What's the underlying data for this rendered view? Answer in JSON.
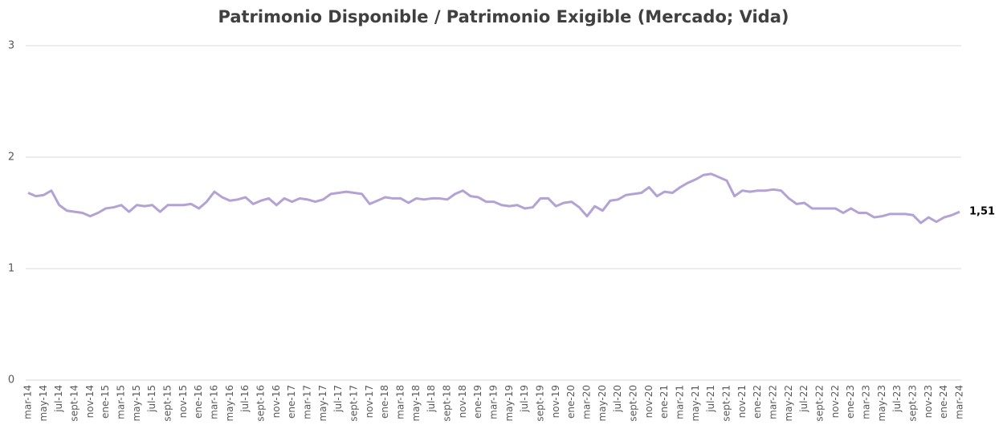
{
  "chart_data": {
    "type": "line",
    "title": "Patrimonio Disponible / Patrimonio Exigible (Mercado; Vida)",
    "categories": [
      "mar-14",
      null,
      "may-14",
      null,
      "jul-14",
      null,
      "sept-14",
      null,
      "nov-14",
      null,
      "ene-15",
      null,
      "mar-15",
      null,
      "may-15",
      null,
      "jul-15",
      null,
      "sept-15",
      null,
      "nov-15",
      null,
      "ene-16",
      null,
      "mar-16",
      null,
      "may-16",
      null,
      "jul-16",
      null,
      "sept-16",
      null,
      "nov-16",
      null,
      "ene-17",
      null,
      "mar-17",
      null,
      "may-17",
      null,
      "jul-17",
      null,
      "sept-17",
      null,
      "nov-17",
      null,
      "ene-18",
      null,
      "mar-18",
      null,
      "may-18",
      null,
      "jul-18",
      null,
      "sept-18",
      null,
      "nov-18",
      null,
      "ene-19",
      null,
      "mar-19",
      null,
      "may-19",
      null,
      "jul-19",
      null,
      "sept-19",
      null,
      "nov-19",
      null,
      "ene-20",
      null,
      "mar-20",
      null,
      "may-20",
      null,
      "jul-20",
      null,
      "sept-20",
      null,
      "nov-20",
      null,
      "ene-21",
      null,
      "mar-21",
      null,
      "may-21",
      null,
      "jul-21",
      null,
      "sept-21",
      null,
      "nov-21",
      null,
      "ene-22",
      null,
      "mar-22",
      null,
      "may-22",
      null,
      "jul-22",
      null,
      "sept-22",
      null,
      "nov-22",
      null,
      "ene-23",
      null,
      "mar-23",
      null,
      "may-23",
      null,
      "jul-23",
      null,
      "sept-23",
      null,
      "nov-23",
      null,
      "ene-24",
      null,
      "mar-24"
    ],
    "series": [
      {
        "color": "#b3a2d3",
        "values": [
          1.68,
          1.65,
          1.66,
          1.7,
          1.57,
          1.52,
          1.51,
          1.5,
          1.47,
          1.5,
          1.54,
          1.55,
          1.57,
          1.51,
          1.57,
          1.56,
          1.57,
          1.51,
          1.57,
          1.57,
          1.57,
          1.58,
          1.54,
          1.6,
          1.69,
          1.64,
          1.61,
          1.62,
          1.64,
          1.58,
          1.61,
          1.63,
          1.57,
          1.63,
          1.6,
          1.63,
          1.62,
          1.6,
          1.62,
          1.67,
          1.68,
          1.69,
          1.68,
          1.67,
          1.58,
          1.61,
          1.64,
          1.63,
          1.63,
          1.59,
          1.63,
          1.62,
          1.63,
          1.63,
          1.62,
          1.67,
          1.7,
          1.65,
          1.64,
          1.6,
          1.6,
          1.57,
          1.56,
          1.57,
          1.54,
          1.55,
          1.63,
          1.63,
          1.56,
          1.59,
          1.6,
          1.55,
          1.47,
          1.56,
          1.52,
          1.61,
          1.62,
          1.66,
          1.67,
          1.68,
          1.73,
          1.65,
          1.69,
          1.68,
          1.73,
          1.77,
          1.8,
          1.84,
          1.85,
          1.82,
          1.79,
          1.65,
          1.7,
          1.69,
          1.7,
          1.7,
          1.71,
          1.7,
          1.63,
          1.58,
          1.59,
          1.54,
          1.54,
          1.54,
          1.54,
          1.5,
          1.54,
          1.5,
          1.5,
          1.46,
          1.47,
          1.49,
          1.49,
          1.49,
          1.48,
          1.41,
          1.46,
          1.42,
          1.46,
          1.48,
          1.51
        ],
        "value_labels": [
          null,
          null,
          null,
          null,
          null,
          null,
          null,
          null,
          null,
          null,
          null,
          null,
          null,
          null,
          null,
          null,
          null,
          null,
          null,
          null,
          null,
          null,
          null,
          null,
          null,
          null,
          null,
          null,
          null,
          null,
          null,
          null,
          null,
          null,
          null,
          null,
          null,
          null,
          null,
          null,
          null,
          null,
          null,
          null,
          null,
          null,
          null,
          null,
          null,
          null,
          null,
          null,
          null,
          null,
          null,
          null,
          null,
          null,
          null,
          null,
          null,
          null,
          null,
          null,
          null,
          null,
          null,
          null,
          null,
          null,
          null,
          null,
          null,
          null,
          null,
          null,
          null,
          null,
          null,
          null,
          null,
          null,
          null,
          null,
          null,
          null,
          null,
          null,
          null,
          null,
          null,
          null,
          null,
          null,
          null,
          null,
          null,
          null,
          null,
          null,
          null,
          null,
          null,
          null,
          null,
          null,
          null,
          null,
          null,
          null,
          null,
          null,
          null,
          null,
          null,
          null,
          null,
          null,
          null,
          null,
          "1,51"
        ]
      }
    ],
    "ylim": [
      0,
      3
    ],
    "yticks": [
      0,
      1,
      2,
      3
    ],
    "grid": true
  }
}
